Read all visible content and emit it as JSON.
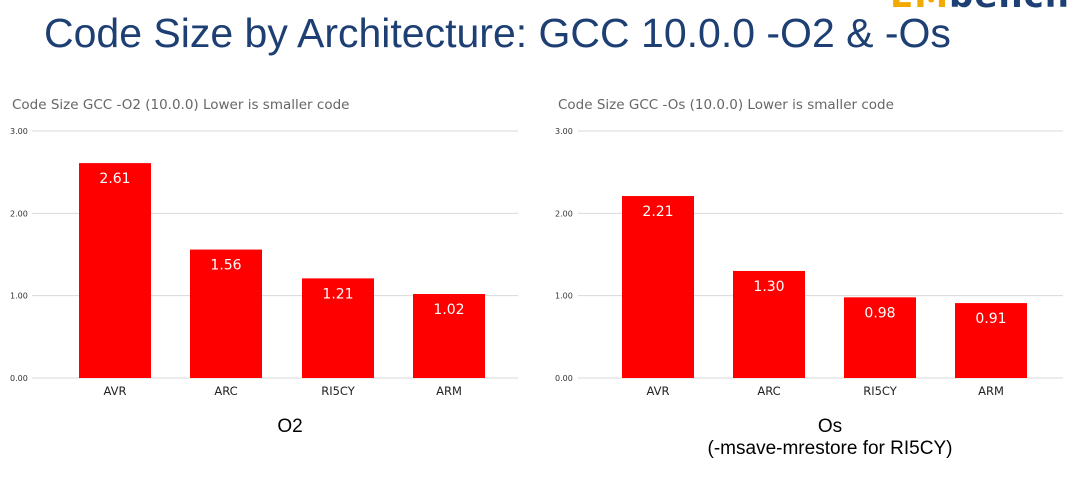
{
  "slide": {
    "title": "Code Size by Architecture: GCC 10.0.0 -O2 & -Os",
    "logo_fragment": "EMbench"
  },
  "colors": {
    "bar": "#ff0000",
    "title": "#1d3f73",
    "grid": "#d9d9d9"
  },
  "chart_data": [
    {
      "type": "bar",
      "title": "Code Size GCC -O2 (10.0.0)  Lower is smaller code",
      "categories": [
        "AVR",
        "ARC",
        "RI5CY",
        "ARM"
      ],
      "values": [
        2.61,
        1.56,
        1.21,
        1.02
      ],
      "value_labels": [
        "2.61",
        "1.56",
        "1.21",
        "1.02"
      ],
      "ylim": [
        0,
        3
      ],
      "yticks": [
        0,
        1,
        2,
        3
      ],
      "ytick_labels": [
        "0.00",
        "1.00",
        "2.00",
        "3.00"
      ],
      "grid": true,
      "caption": [
        "O2"
      ]
    },
    {
      "type": "bar",
      "title": "Code Size GCC -Os (10.0.0)  Lower is smaller code",
      "categories": [
        "AVR",
        "ARC",
        "RI5CY",
        "ARM"
      ],
      "values": [
        2.21,
        1.3,
        0.98,
        0.91
      ],
      "value_labels": [
        "2.21",
        "1.30",
        "0.98",
        "0.91"
      ],
      "ylim": [
        0,
        3
      ],
      "yticks": [
        0,
        1,
        2,
        3
      ],
      "ytick_labels": [
        "0.00",
        "1.00",
        "2.00",
        "3.00"
      ],
      "grid": true,
      "caption": [
        "Os",
        "(-msave-mrestore for RI5CY)"
      ]
    }
  ]
}
